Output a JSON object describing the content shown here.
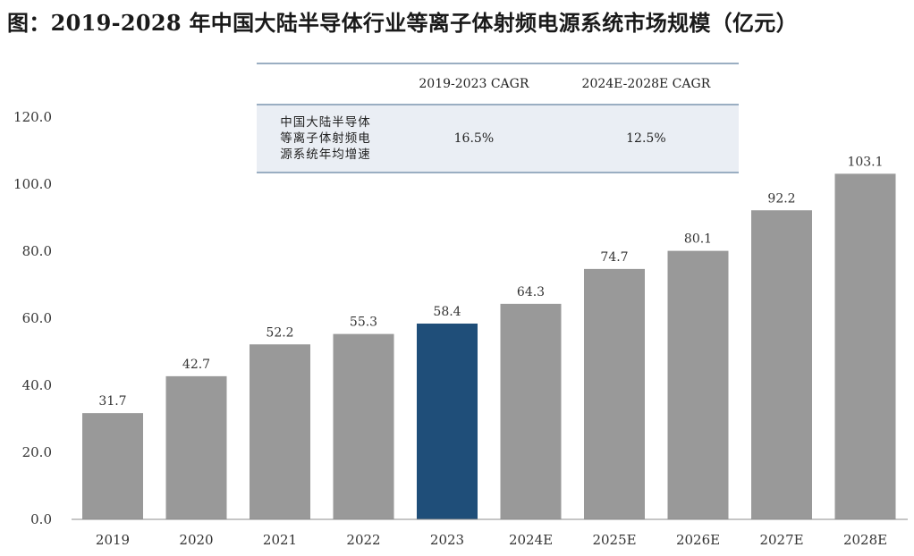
{
  "title": "图：2019-2028 年中国大陆半导体行业等离子体射频电源系统市场规模（亿元）",
  "cagr_table": {
    "col_headers": [
      "2019-2023 CAGR",
      "2024E-2028E CAGR"
    ],
    "row_label": "中国大陆半导体等离子体射频电源系统年均增速",
    "row_label_lines": [
      "中国大陆半导体",
      "等离子体射频电",
      "源系统年均增速"
    ],
    "values": [
      "16.5%",
      "12.5%"
    ]
  },
  "chart_data": {
    "type": "bar",
    "title": "图：2019-2028 年中国大陆半导体行业等离子体射频电源系统市场规模（亿元）",
    "categories": [
      "2019",
      "2020",
      "2021",
      "2022",
      "2023",
      "2024E",
      "2025E",
      "2026E",
      "2027E",
      "2028E"
    ],
    "values": [
      31.7,
      42.7,
      52.2,
      55.3,
      58.4,
      64.3,
      74.7,
      80.1,
      92.2,
      103.1
    ],
    "value_labels": [
      "31.7",
      "42.7",
      "52.2",
      "55.3",
      "58.4",
      "64.3",
      "74.7",
      "80.1",
      "92.2",
      "103.1"
    ],
    "xlabel": "",
    "ylabel": "",
    "ylim": [
      0,
      120
    ],
    "yticks": [
      "0.0",
      "20.0",
      "40.0",
      "60.0",
      "80.0",
      "100.0",
      "120.0"
    ],
    "ytick_values": [
      0,
      20,
      40,
      60,
      80,
      100,
      120
    ],
    "highlight_index": 4,
    "bar_color": "#999999",
    "highlight_color": "#1f4e79",
    "grid": false,
    "legend": "none"
  }
}
